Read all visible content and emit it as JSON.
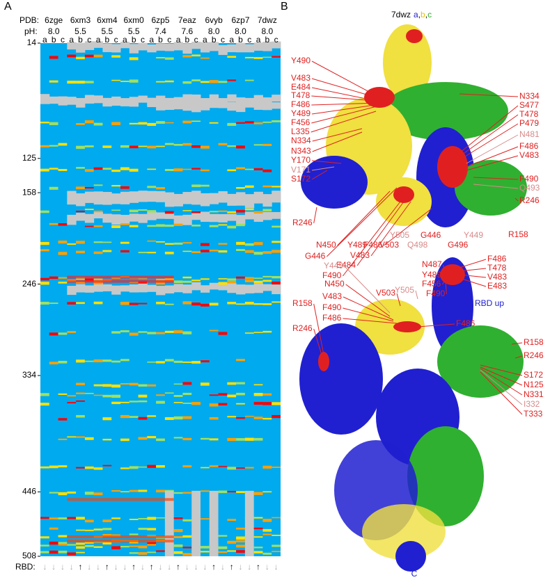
{
  "panel_a": {
    "label": "A",
    "pdb_label": "PDB:",
    "ph_label": "pH:",
    "rbd_label": "RBD:",
    "structures": [
      "6zge",
      "6xm3",
      "6xm4",
      "6xm0",
      "6zp5",
      "7eaz",
      "6vyb",
      "6zp7",
      "7dwz"
    ],
    "ph": [
      "8.0",
      "5.5",
      "5.5",
      "5.5",
      "7.4",
      "7.6",
      "8.0",
      "8.0",
      "8.0"
    ],
    "chains": [
      "a",
      "b",
      "c"
    ],
    "ylim": [
      14,
      508
    ],
    "yticks": [
      14,
      125,
      158,
      246,
      334,
      446,
      508
    ],
    "rbd": [
      "↓",
      "↓",
      "↓",
      "↓",
      "↑",
      "↓",
      "↓",
      "↑",
      "↓",
      "↓",
      "↑",
      "↓",
      "↑",
      "↓",
      "↓",
      "↑",
      "↓",
      "↓",
      "↓",
      "↑",
      "↓",
      "↑",
      "↓",
      "↓",
      "↑",
      "↓",
      "↓"
    ]
  },
  "panel_b": {
    "label": "B",
    "title_parts": [
      "7dwz",
      "a",
      ",",
      "b",
      ",",
      "c"
    ],
    "rbd_up": "RBD up",
    "c_term": "C",
    "labels": [
      "Y490",
      "V483",
      "E484",
      "T478",
      "F486",
      "Y489",
      "F456",
      "L335",
      "N334",
      "N343",
      "Y170",
      "V171",
      "S172",
      "R246",
      "N450",
      "G446",
      "F490",
      "E484",
      "V483",
      "F486",
      "Y489",
      "V503",
      "Y505",
      "Q498",
      "G446",
      "G496",
      "Y449",
      "R158",
      "N334",
      "S477",
      "T478",
      "P479",
      "N481",
      "F486",
      "V483",
      "F490",
      "Q493",
      "R246",
      "Y449",
      "N450",
      "V483",
      "F490",
      "F486",
      "R158",
      "R246",
      "V503",
      "Y505",
      "N487",
      "Y489",
      "F456",
      "F490",
      "F486",
      "T478",
      "V483",
      "E483",
      "F486",
      "R158",
      "R246",
      "S172",
      "N125",
      "N331",
      "I332",
      "T333"
    ]
  }
}
